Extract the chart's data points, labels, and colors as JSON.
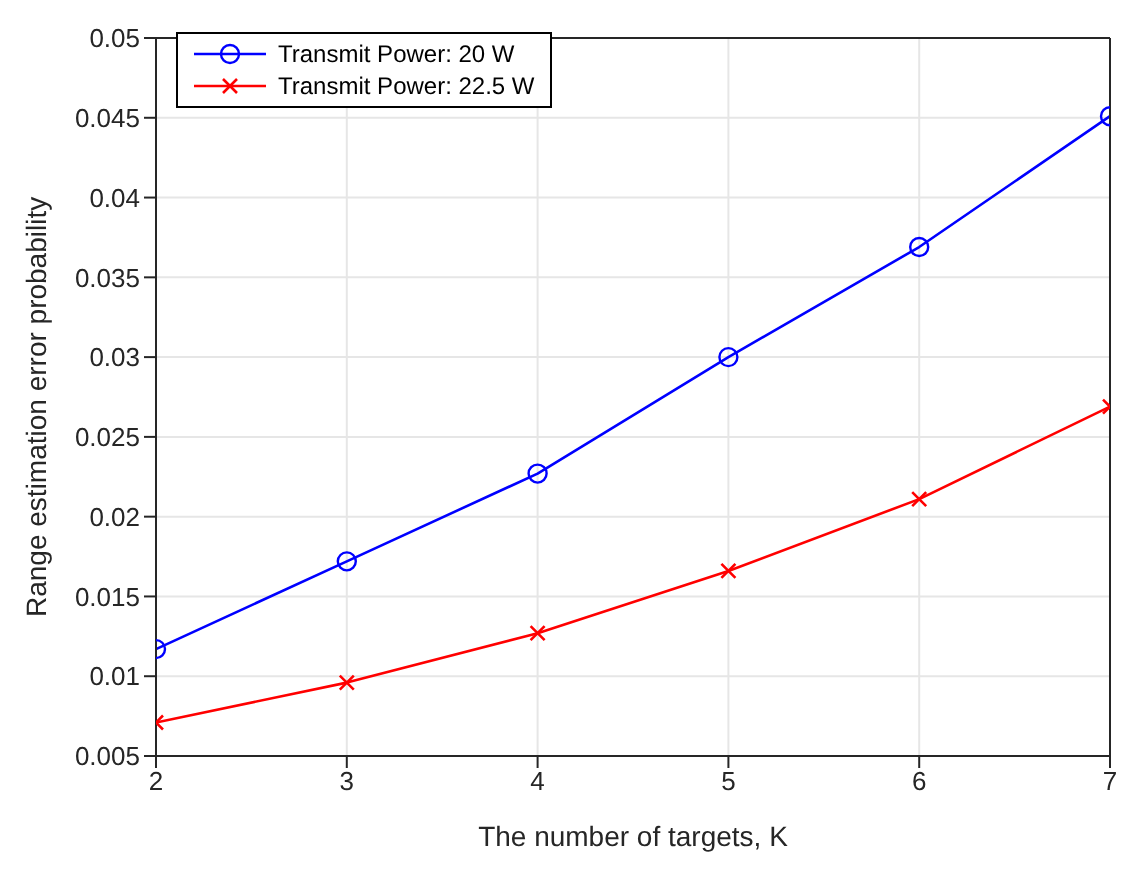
{
  "chart_data": {
    "type": "line",
    "xlabel": "The number of targets, K",
    "ylabel": "Range estimation error probability",
    "x": [
      2,
      3,
      4,
      5,
      6,
      7
    ],
    "series": [
      {
        "name": "Transmit Power: 20 W",
        "color": "#0000ff",
        "marker": "circle",
        "values": [
          0.0117,
          0.0172,
          0.0227,
          0.03,
          0.0369,
          0.0451
        ]
      },
      {
        "name": "Transmit Power: 22.5 W",
        "color": "#ff0000",
        "marker": "cross",
        "values": [
          0.0071,
          0.0096,
          0.0127,
          0.0166,
          0.0211,
          0.0269
        ]
      }
    ],
    "xlim": [
      2,
      7
    ],
    "xticks": [
      2,
      3,
      4,
      5,
      6,
      7
    ],
    "ylim": [
      0.005,
      0.05
    ],
    "yticks": [
      0.005,
      0.01,
      0.015,
      0.02,
      0.025,
      0.03,
      0.035,
      0.04,
      0.045,
      0.05
    ],
    "grid": true,
    "legend": "top left",
    "line_style": "solid"
  }
}
